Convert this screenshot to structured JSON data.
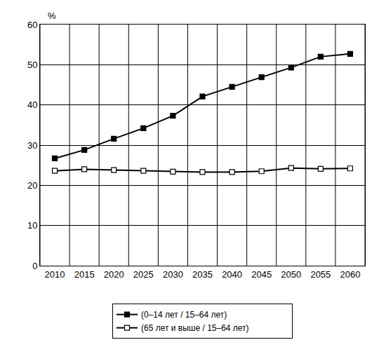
{
  "chart_data": {
    "type": "line",
    "y_label": "%",
    "categories": [
      "2010",
      "2015",
      "2020",
      "2025",
      "2030",
      "2035",
      "2040",
      "2045",
      "2050",
      "2055",
      "2060"
    ],
    "series": [
      {
        "name": "(0–14 лет / 15–64 лет)",
        "color": "#000000",
        "marker": "square",
        "line_style": "solid",
        "values": [
          26.7,
          28.8,
          31.6,
          34.2,
          37.3,
          42.1,
          44.5,
          46.9,
          49.3,
          52.0,
          52.7
        ]
      },
      {
        "name": "(65 лет и выше / 15–64 лет)",
        "color": "#000000",
        "marker": "square-open",
        "line_style": "solid",
        "values": [
          23.6,
          24.0,
          23.8,
          23.6,
          23.4,
          23.3,
          23.3,
          23.5,
          24.3,
          24.1,
          24.2
        ]
      }
    ],
    "ylim": [
      0,
      60
    ],
    "yticks": [
      0,
      10,
      20,
      30,
      40,
      50,
      60
    ],
    "grid": true,
    "legend": "bottom"
  }
}
